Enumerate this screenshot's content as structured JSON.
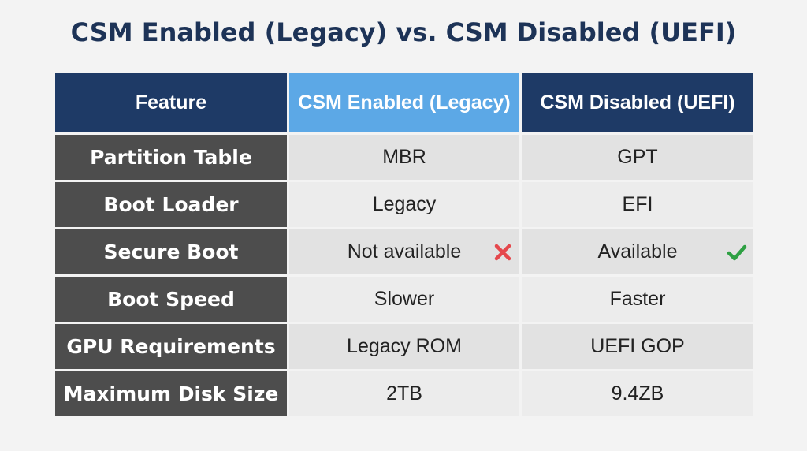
{
  "title": "CSM Enabled (Legacy) vs. CSM Disabled (UEFI)",
  "columns": {
    "feature": "Feature",
    "legacy": "CSM Enabled (Legacy)",
    "uefi": "CSM Disabled (UEFI)"
  },
  "rows": [
    {
      "feature": "Partition Table",
      "legacy": "MBR",
      "uefi": "GPT"
    },
    {
      "feature": "Boot Loader",
      "legacy": "Legacy",
      "uefi": "EFI"
    },
    {
      "feature": "Secure Boot",
      "legacy": "Not available",
      "uefi": "Available",
      "legacy_icon": "red-x-icon",
      "uefi_icon": "green-check-icon"
    },
    {
      "feature": "Boot Speed",
      "legacy": "Slower",
      "uefi": "Faster"
    },
    {
      "feature": "GPU Requirements",
      "legacy": "Legacy ROM",
      "uefi": "UEFI GOP"
    },
    {
      "feature": "Maximum Disk Size",
      "legacy": "2TB",
      "uefi": "9.4ZB"
    }
  ],
  "colors": {
    "title": "#1d3357",
    "header_dark": "#1e3a66",
    "header_light": "#5ca8e6",
    "feature_cell": "#4d4d4d",
    "cross": "#e5484d",
    "check": "#2ea043"
  }
}
